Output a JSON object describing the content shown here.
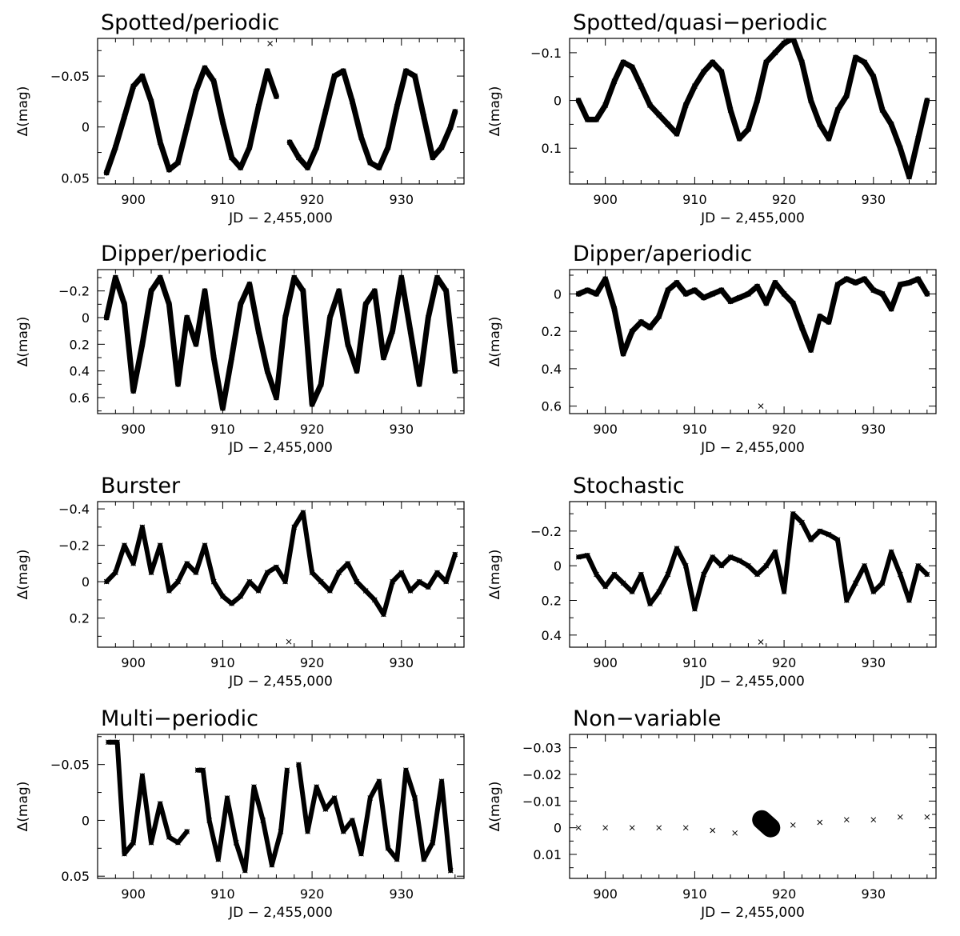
{
  "chart_data": [
    {
      "type": "scatter",
      "title": "Spotted/periodic",
      "xlabel": "JD − 2,455,000",
      "ylabel": "Δ(mag)",
      "xlim": [
        896,
        937
      ],
      "ylim": [
        0.056,
        -0.087
      ],
      "y_inverted": true,
      "xticks": [
        900,
        910,
        920,
        930
      ],
      "yticks": [
        -0.05,
        0,
        0.05
      ],
      "ytick_labels": [
        "−0.05",
        "0",
        "0.05"
      ],
      "series": [
        {
          "marker": "x",
          "x": [
            897,
            898,
            899,
            900,
            901,
            902,
            903,
            904,
            905,
            906,
            907,
            908,
            909,
            910,
            911,
            912,
            913,
            914,
            915,
            916,
            917.5,
            918.5,
            919.5,
            920.5,
            921.5,
            922.5,
            923.5,
            924.5,
            925.5,
            926.5,
            927.5,
            928.5,
            929.5,
            930.5,
            931.5,
            932.5,
            933.5,
            934.5,
            935.5,
            936
          ],
          "y": [
            0.045,
            0.02,
            -0.01,
            -0.04,
            -0.05,
            -0.025,
            0.015,
            0.042,
            0.035,
            0.0,
            -0.035,
            -0.058,
            -0.045,
            -0.005,
            0.03,
            0.04,
            0.02,
            -0.02,
            -0.055,
            -0.03,
            0.015,
            0.03,
            0.04,
            0.02,
            -0.015,
            -0.05,
            -0.055,
            -0.025,
            0.01,
            0.035,
            0.04,
            0.02,
            -0.02,
            -0.055,
            -0.05,
            -0.01,
            0.03,
            0.02,
            0.0,
            -0.015
          ]
        }
      ],
      "outliers": [
        {
          "x": 915.3,
          "y": -0.082
        }
      ]
    },
    {
      "type": "scatter",
      "title": "Spotted/quasi−periodic",
      "xlabel": "JD − 2,455,000",
      "ylabel": "Δ(mag)",
      "xlim": [
        896,
        937
      ],
      "ylim": [
        0.175,
        -0.13
      ],
      "y_inverted": true,
      "xticks": [
        900,
        910,
        920,
        930
      ],
      "yticks": [
        -0.1,
        0,
        0.1
      ],
      "ytick_labels": [
        "−0.1",
        "0",
        "0.1"
      ],
      "series": [
        {
          "marker": "x",
          "x": [
            897,
            898,
            899,
            900,
            901,
            902,
            903,
            904,
            905,
            906,
            907,
            908,
            909,
            910,
            911,
            912,
            913,
            914,
            915,
            916,
            917,
            918,
            919,
            920,
            921,
            922,
            923,
            924,
            925,
            926,
            927,
            928,
            929,
            930,
            931,
            932,
            933,
            934,
            935,
            936
          ],
          "y": [
            0.0,
            0.04,
            0.04,
            0.01,
            -0.04,
            -0.08,
            -0.07,
            -0.03,
            0.01,
            0.03,
            0.05,
            0.07,
            0.01,
            -0.03,
            -0.06,
            -0.08,
            -0.06,
            0.02,
            0.08,
            0.06,
            0.0,
            -0.08,
            -0.1,
            -0.12,
            -0.13,
            -0.08,
            0.0,
            0.05,
            0.08,
            0.02,
            -0.01,
            -0.09,
            -0.08,
            -0.05,
            0.02,
            0.05,
            0.1,
            0.16,
            0.08,
            0.0
          ]
        }
      ]
    },
    {
      "type": "scatter",
      "title": "Dipper/periodic",
      "xlabel": "JD − 2,455,000",
      "ylabel": "Δ(mag)",
      "xlim": [
        896,
        937
      ],
      "ylim": [
        0.72,
        -0.36
      ],
      "y_inverted": true,
      "xticks": [
        900,
        910,
        920,
        930
      ],
      "yticks": [
        -0.2,
        0,
        0.2,
        0.4,
        0.6
      ],
      "ytick_labels": [
        "−0.2",
        "0",
        "0.2",
        "0.4",
        "0.6"
      ],
      "series": [
        {
          "marker": "x",
          "x": [
            897,
            898,
            899,
            900,
            901,
            902,
            903,
            904,
            905,
            906,
            907,
            908,
            909,
            910,
            911,
            912,
            913,
            914,
            915,
            916,
            917,
            918,
            919,
            920,
            921,
            922,
            923,
            924,
            925,
            926,
            927,
            928,
            929,
            930,
            931,
            932,
            933,
            934,
            935,
            936
          ],
          "y": [
            0.0,
            -0.3,
            -0.1,
            0.55,
            0.2,
            -0.2,
            -0.3,
            -0.1,
            0.5,
            0.0,
            0.2,
            -0.2,
            0.3,
            0.68,
            0.3,
            -0.1,
            -0.25,
            0.1,
            0.4,
            0.6,
            0.0,
            -0.3,
            -0.2,
            0.65,
            0.5,
            0.0,
            -0.2,
            0.2,
            0.4,
            -0.1,
            -0.2,
            0.3,
            0.1,
            -0.3,
            0.1,
            0.5,
            0.0,
            -0.3,
            -0.2,
            0.4
          ]
        }
      ]
    },
    {
      "type": "scatter",
      "title": "Dipper/aperiodic",
      "xlabel": "JD − 2,455,000",
      "ylabel": "Δ(mag)",
      "xlim": [
        896,
        937
      ],
      "ylim": [
        0.64,
        -0.13
      ],
      "y_inverted": true,
      "xticks": [
        900,
        910,
        920,
        930
      ],
      "yticks": [
        0,
        0.2,
        0.4,
        0.6
      ],
      "ytick_labels": [
        "0",
        "0.2",
        "0.4",
        "0.6"
      ],
      "series": [
        {
          "marker": "x",
          "x": [
            897,
            898,
            899,
            900,
            901,
            902,
            903,
            904,
            905,
            906,
            907,
            908,
            909,
            910,
            911,
            912,
            913,
            914,
            915,
            916,
            917,
            918,
            919,
            920,
            921,
            922,
            923,
            924,
            925,
            926,
            927,
            928,
            929,
            930,
            931,
            932,
            933,
            934,
            935,
            936
          ],
          "y": [
            0.0,
            -0.02,
            0.0,
            -0.08,
            0.08,
            0.32,
            0.2,
            0.15,
            0.18,
            0.12,
            -0.02,
            -0.06,
            0.0,
            -0.02,
            0.02,
            0.0,
            -0.02,
            0.04,
            0.02,
            0.0,
            -0.04,
            0.05,
            -0.06,
            0.0,
            0.05,
            0.18,
            0.3,
            0.12,
            0.15,
            -0.05,
            -0.08,
            -0.06,
            -0.08,
            -0.02,
            0.0,
            0.08,
            -0.05,
            -0.06,
            -0.08,
            0.0
          ]
        }
      ],
      "outliers": [
        {
          "x": 917.4,
          "y": 0.6
        }
      ]
    },
    {
      "type": "scatter",
      "title": "Burster",
      "xlabel": "JD − 2,455,000",
      "ylabel": "Δ(mag)",
      "xlim": [
        896,
        937
      ],
      "ylim": [
        0.36,
        -0.44
      ],
      "y_inverted": true,
      "xticks": [
        900,
        910,
        920,
        930
      ],
      "yticks": [
        -0.4,
        -0.2,
        0,
        0.2
      ],
      "ytick_labels": [
        "−0.4",
        "−0.2",
        "0",
        "0.2"
      ],
      "series": [
        {
          "marker": "x",
          "x": [
            897,
            898,
            899,
            900,
            901,
            902,
            903,
            904,
            905,
            906,
            907,
            908,
            909,
            910,
            911,
            912,
            913,
            914,
            915,
            916,
            917,
            918,
            919,
            920,
            921,
            922,
            923,
            924,
            925,
            926,
            927,
            928,
            929,
            930,
            931,
            932,
            933,
            934,
            935,
            936
          ],
          "y": [
            0.0,
            -0.05,
            -0.2,
            -0.1,
            -0.3,
            -0.05,
            -0.2,
            0.05,
            0.0,
            -0.1,
            -0.05,
            -0.2,
            0.0,
            0.08,
            0.12,
            0.08,
            0.0,
            0.05,
            -0.05,
            -0.08,
            0.0,
            -0.3,
            -0.38,
            -0.05,
            0.0,
            0.05,
            -0.05,
            -0.1,
            0.0,
            0.05,
            0.1,
            0.18,
            0.0,
            -0.05,
            0.05,
            0.0,
            0.03,
            -0.05,
            0.0,
            -0.15
          ]
        }
      ],
      "outliers": [
        {
          "x": 917.4,
          "y": 0.33
        }
      ]
    },
    {
      "type": "scatter",
      "title": "Stochastic",
      "xlabel": "JD − 2,455,000",
      "ylabel": "Δ(mag)",
      "xlim": [
        896,
        937
      ],
      "ylim": [
        0.47,
        -0.37
      ],
      "y_inverted": true,
      "xticks": [
        900,
        910,
        920,
        930
      ],
      "yticks": [
        -0.2,
        0,
        0.2,
        0.4
      ],
      "ytick_labels": [
        "−0.2",
        "0",
        "0.2",
        "0.4"
      ],
      "series": [
        {
          "marker": "x",
          "x": [
            897,
            898,
            899,
            900,
            901,
            902,
            903,
            904,
            905,
            906,
            907,
            908,
            909,
            910,
            911,
            912,
            913,
            914,
            915,
            916,
            917,
            918,
            919,
            920,
            921,
            922,
            923,
            924,
            925,
            926,
            927,
            928,
            929,
            930,
            931,
            932,
            933,
            934,
            935,
            936
          ],
          "y": [
            -0.05,
            -0.06,
            0.05,
            0.12,
            0.05,
            0.1,
            0.15,
            0.05,
            0.22,
            0.15,
            0.05,
            -0.1,
            0.0,
            0.25,
            0.05,
            -0.05,
            0.0,
            -0.05,
            -0.03,
            0.0,
            0.05,
            0.0,
            -0.08,
            0.15,
            -0.3,
            -0.25,
            -0.15,
            -0.2,
            -0.18,
            -0.15,
            0.2,
            0.1,
            0.0,
            0.15,
            0.1,
            -0.08,
            0.05,
            0.2,
            0.0,
            0.05
          ]
        }
      ],
      "outliers": [
        {
          "x": 917.4,
          "y": 0.44
        }
      ]
    },
    {
      "type": "scatter",
      "title": "Multi−periodic",
      "xlabel": "JD − 2,455,000",
      "ylabel": "Δ(mag)",
      "xlim": [
        896,
        937
      ],
      "ylim": [
        0.052,
        -0.077
      ],
      "y_inverted": true,
      "xticks": [
        900,
        910,
        920,
        930
      ],
      "yticks": [
        -0.05,
        0,
        0.05
      ],
      "ytick_labels": [
        "−0.05",
        "0",
        "0.05"
      ],
      "series": [
        {
          "marker": "x",
          "x": [
            897.2,
            898.2,
            899,
            900,
            901,
            902,
            903,
            904,
            905,
            906,
            907.2,
            907.8,
            908.5,
            909.5,
            910.5,
            911.5,
            912.5,
            913.5,
            914.5,
            915.5,
            916.5,
            917.2,
            918.5,
            919.5,
            920.5,
            921.5,
            922.5,
            923.5,
            924.5,
            925.5,
            926.5,
            927.5,
            928.5,
            929.5,
            930.5,
            931.5,
            932.5,
            933.5,
            934.5,
            935.5
          ],
          "y": [
            -0.07,
            -0.07,
            0.03,
            0.02,
            -0.04,
            0.02,
            -0.015,
            0.015,
            0.02,
            0.01,
            -0.045,
            -0.045,
            0.0,
            0.035,
            -0.02,
            0.02,
            0.045,
            -0.03,
            0.0,
            0.04,
            0.01,
            -0.045,
            -0.05,
            0.01,
            -0.03,
            -0.01,
            -0.02,
            0.01,
            0.0,
            0.03,
            -0.02,
            -0.035,
            0.025,
            0.035,
            -0.045,
            -0.02,
            0.035,
            0.02,
            -0.035,
            0.045
          ]
        }
      ]
    },
    {
      "type": "scatter",
      "title": "Non−variable",
      "xlabel": "JD − 2,455,000",
      "ylabel": "Δ(mag)",
      "xlim": [
        896,
        937
      ],
      "ylim": [
        0.019,
        -0.035
      ],
      "y_inverted": true,
      "xticks": [
        900,
        910,
        920,
        930
      ],
      "yticks": [
        -0.03,
        -0.02,
        -0.01,
        0,
        0.01
      ],
      "ytick_labels": [
        "−0.03",
        "−0.02",
        "−0.01",
        "0",
        "0.01"
      ],
      "series": [
        {
          "marker": "x",
          "x": [
            897,
            900,
            903,
            906,
            909,
            912,
            914.5,
            917.5,
            918.5,
            921,
            924,
            927,
            930,
            933,
            936
          ],
          "y": [
            0.0,
            0.0,
            0.0,
            0.0,
            0.0,
            0.001,
            0.002,
            -0.003,
            0.0,
            -0.001,
            -0.002,
            -0.003,
            -0.003,
            -0.004,
            -0.004
          ]
        }
      ]
    }
  ]
}
